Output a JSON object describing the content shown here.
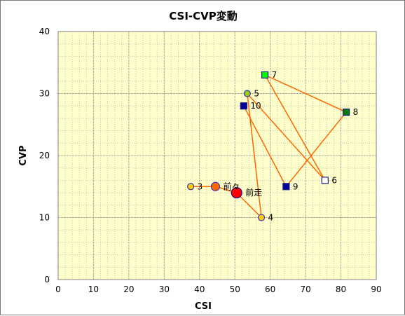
{
  "chart_data": {
    "type": "scatter",
    "title": "CSI-CVP変動",
    "xlabel": "CSI",
    "ylabel": "CVP",
    "xlim": [
      0,
      90
    ],
    "ylim": [
      0,
      40
    ],
    "xticks": [
      0,
      10,
      20,
      30,
      40,
      50,
      60,
      70,
      80,
      90
    ],
    "yticks": [
      0,
      10,
      20,
      30,
      40
    ],
    "grid": true,
    "plot_background": "#ffffcc",
    "grid_color": "#a0a0a0",
    "line_color": "#ff6600",
    "path_order": [
      "3",
      "前々",
      "前走",
      "4",
      "5",
      "6",
      "7",
      "8",
      "9",
      "10"
    ],
    "points": [
      {
        "label": "3",
        "x": 37.5,
        "y": 15,
        "marker": "circle",
        "size": "small",
        "fill": "#ffcc00",
        "stroke": "#3333cc"
      },
      {
        "label": "前々",
        "x": 44.5,
        "y": 15,
        "marker": "circle",
        "size": "medium",
        "fill": "#ff6600",
        "stroke": "#3333cc"
      },
      {
        "label": "前走",
        "x": 50.5,
        "y": 14,
        "marker": "circle",
        "size": "large",
        "fill": "#ff0000",
        "stroke": "#1a1a8c"
      },
      {
        "label": "4",
        "x": 57.5,
        "y": 10,
        "marker": "circle",
        "size": "small",
        "fill": "#ffcc00",
        "stroke": "#3333cc"
      },
      {
        "label": "5",
        "x": 53.5,
        "y": 30,
        "marker": "circle",
        "size": "small",
        "fill": "#99cc00",
        "stroke": "#3333cc"
      },
      {
        "label": "6",
        "x": 75.5,
        "y": 16,
        "marker": "square",
        "size": "small",
        "fill": "#ffffff",
        "stroke": "#1a1a8c"
      },
      {
        "label": "7",
        "x": 58.5,
        "y": 33,
        "marker": "square",
        "size": "small",
        "fill": "#00ff00",
        "stroke": "#1a1a8c"
      },
      {
        "label": "8",
        "x": 81.5,
        "y": 27,
        "marker": "square",
        "size": "small",
        "fill": "#008000",
        "stroke": "#1a1a8c"
      },
      {
        "label": "9",
        "x": 64.5,
        "y": 15,
        "marker": "square",
        "size": "small",
        "fill": "#000099",
        "stroke": "#1a1a8c"
      },
      {
        "label": "10",
        "x": 52.5,
        "y": 28,
        "marker": "square",
        "size": "small",
        "fill": "#000099",
        "stroke": "#1a1a8c"
      }
    ]
  }
}
